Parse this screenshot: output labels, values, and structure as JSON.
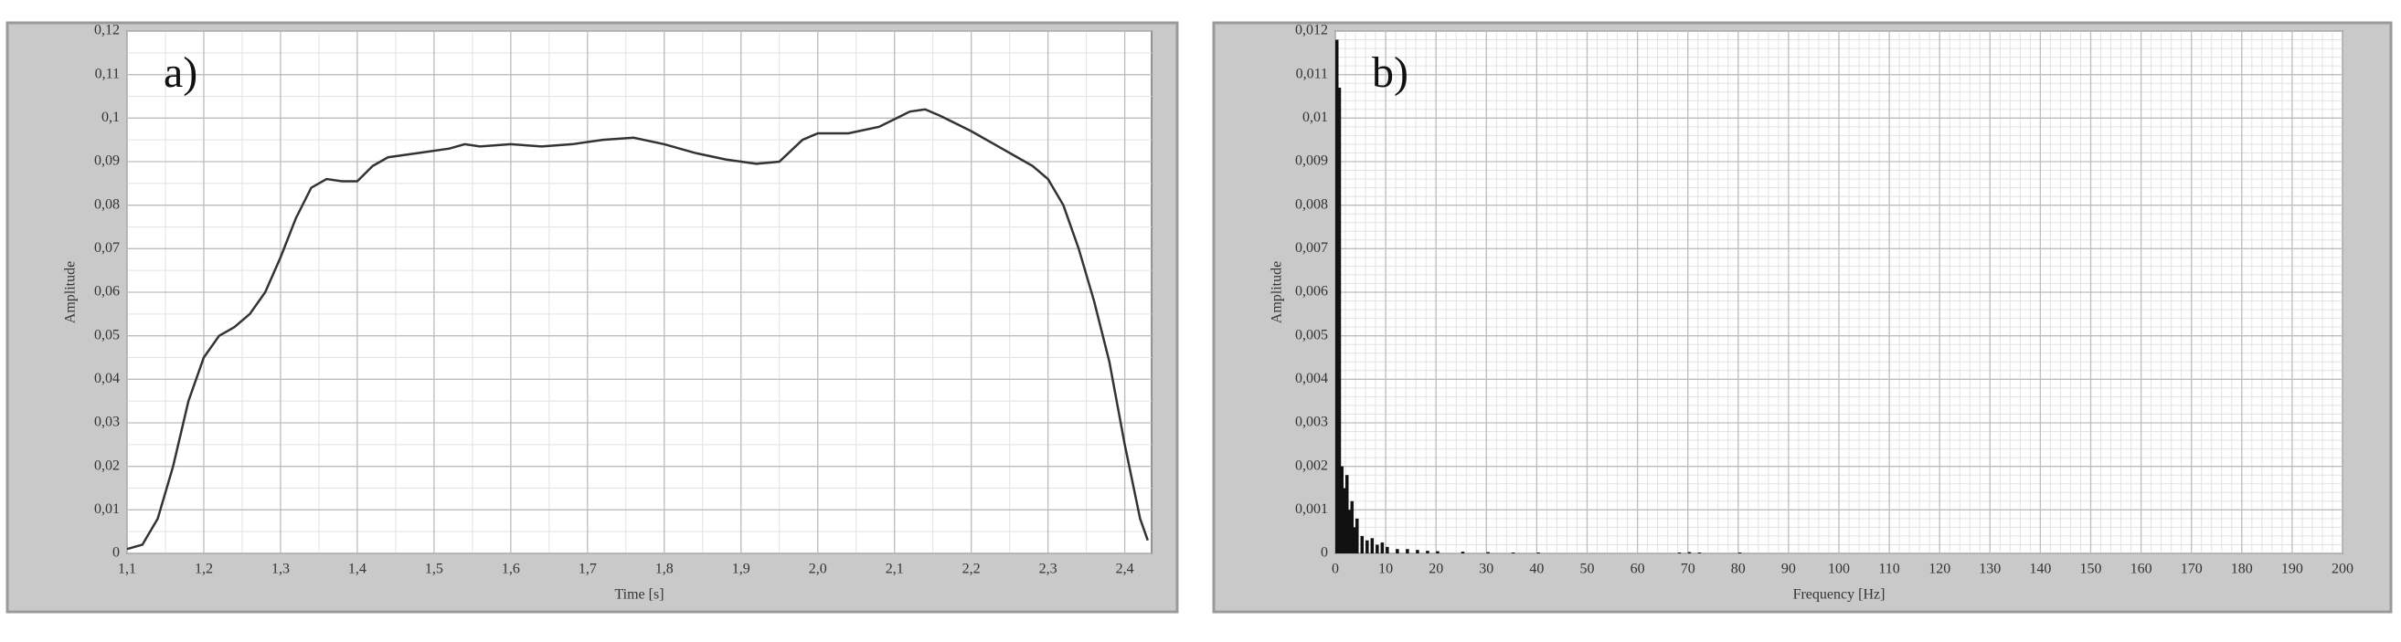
{
  "chart_data": [
    {
      "type": "line",
      "annotation": "a)",
      "xlabel": "Time [s]",
      "ylabel": "Amplitude",
      "x": [
        1.1,
        1.12,
        1.14,
        1.16,
        1.18,
        1.2,
        1.22,
        1.24,
        1.26,
        1.28,
        1.3,
        1.32,
        1.34,
        1.36,
        1.38,
        1.4,
        1.42,
        1.44,
        1.48,
        1.52,
        1.54,
        1.56,
        1.6,
        1.64,
        1.68,
        1.72,
        1.76,
        1.8,
        1.84,
        1.88,
        1.92,
        1.95,
        1.98,
        2.0,
        2.04,
        2.08,
        2.12,
        2.14,
        2.16,
        2.2,
        2.24,
        2.26,
        2.28,
        2.3,
        2.32,
        2.34,
        2.36,
        2.38,
        2.4,
        2.42,
        2.43
      ],
      "values": [
        0.001,
        0.002,
        0.008,
        0.02,
        0.035,
        0.045,
        0.05,
        0.052,
        0.055,
        0.06,
        0.068,
        0.077,
        0.084,
        0.086,
        0.0855,
        0.0855,
        0.089,
        0.091,
        0.092,
        0.093,
        0.094,
        0.0935,
        0.094,
        0.0935,
        0.094,
        0.095,
        0.0955,
        0.094,
        0.092,
        0.0905,
        0.0895,
        0.09,
        0.095,
        0.0965,
        0.0965,
        0.098,
        0.1015,
        0.102,
        0.1005,
        0.097,
        0.093,
        0.091,
        0.089,
        0.086,
        0.08,
        0.07,
        0.058,
        0.044,
        0.025,
        0.008,
        0.003
      ],
      "color": "#333333",
      "xlim": [
        1.1,
        2.435
      ],
      "ylim": [
        0,
        0.12
      ],
      "xticks": [
        {
          "value": 1.1,
          "label": "1,1"
        },
        {
          "value": 1.2,
          "label": "1,2"
        },
        {
          "value": 1.3,
          "label": "1,3"
        },
        {
          "value": 1.4,
          "label": "1,4"
        },
        {
          "value": 1.5,
          "label": "1,5"
        },
        {
          "value": 1.6,
          "label": "1,6"
        },
        {
          "value": 1.7,
          "label": "1,7"
        },
        {
          "value": 1.8,
          "label": "1,8"
        },
        {
          "value": 1.9,
          "label": "1,9"
        },
        {
          "value": 2.0,
          "label": "2,0"
        },
        {
          "value": 2.1,
          "label": "2,1"
        },
        {
          "value": 2.2,
          "label": "2,2"
        },
        {
          "value": 2.3,
          "label": "2,3"
        },
        {
          "value": 2.4,
          "label": "2,4"
        }
      ],
      "yticks": [
        0,
        {
          "value": 0.01,
          "label": "0,01"
        },
        {
          "value": 0.02,
          "label": "0,02"
        },
        {
          "value": 0.03,
          "label": "0,03"
        },
        {
          "value": 0.04,
          "label": "0,04"
        },
        {
          "value": 0.05,
          "label": "0,05"
        },
        {
          "value": 0.06,
          "label": "0,06"
        },
        {
          "value": 0.07,
          "label": "0,07"
        },
        {
          "value": 0.08,
          "label": "0,08"
        },
        {
          "value": 0.09,
          "label": "0,09"
        },
        {
          "value": 0.1,
          "label": "0,1"
        },
        {
          "value": 0.11,
          "label": "0,11"
        },
        {
          "value": 0.12,
          "label": "0,12"
        }
      ],
      "grid": true,
      "minor_grid": 2
    },
    {
      "type": "bar",
      "annotation": "b)",
      "xlabel": "Frequency [Hz]",
      "ylabel": "Amplitude",
      "x": [
        0,
        0.5,
        1,
        1.5,
        2,
        2.5,
        3,
        3.5,
        4,
        5,
        6,
        7,
        8,
        9,
        10,
        12,
        14,
        16,
        18,
        20,
        25,
        30,
        35,
        40,
        68,
        70,
        72,
        80
      ],
      "values": [
        0.0118,
        0.0107,
        0.002,
        0.0015,
        0.0018,
        0.001,
        0.0012,
        0.0006,
        0.0008,
        0.0004,
        0.0003,
        0.00035,
        0.0002,
        0.00025,
        0.00015,
        0.0001,
        0.0001,
        8e-05,
        6e-05,
        5e-05,
        4e-05,
        3e-05,
        2e-05,
        2e-05,
        2e-05,
        3e-05,
        2e-05,
        2e-05
      ],
      "color": "#111111",
      "xlim": [
        0,
        200
      ],
      "ylim": [
        0,
        0.012
      ],
      "xticks": [
        0,
        10,
        20,
        30,
        40,
        50,
        60,
        70,
        80,
        90,
        100,
        110,
        120,
        130,
        140,
        150,
        160,
        170,
        180,
        190,
        200
      ],
      "yticks": [
        0,
        {
          "value": 0.001,
          "label": "0,001"
        },
        {
          "value": 0.002,
          "label": "0,002"
        },
        {
          "value": 0.003,
          "label": "0,003"
        },
        {
          "value": 0.004,
          "label": "0,004"
        },
        {
          "value": 0.005,
          "label": "0,005"
        },
        {
          "value": 0.006,
          "label": "0,006"
        },
        {
          "value": 0.007,
          "label": "0,007"
        },
        {
          "value": 0.008,
          "label": "0,008"
        },
        {
          "value": 0.009,
          "label": "0,009"
        },
        {
          "value": 0.01,
          "label": "0,01"
        },
        {
          "value": 0.011,
          "label": "0,011"
        },
        {
          "value": 0.012,
          "label": "0,012"
        }
      ],
      "grid": true,
      "minor_grid": 5
    }
  ]
}
